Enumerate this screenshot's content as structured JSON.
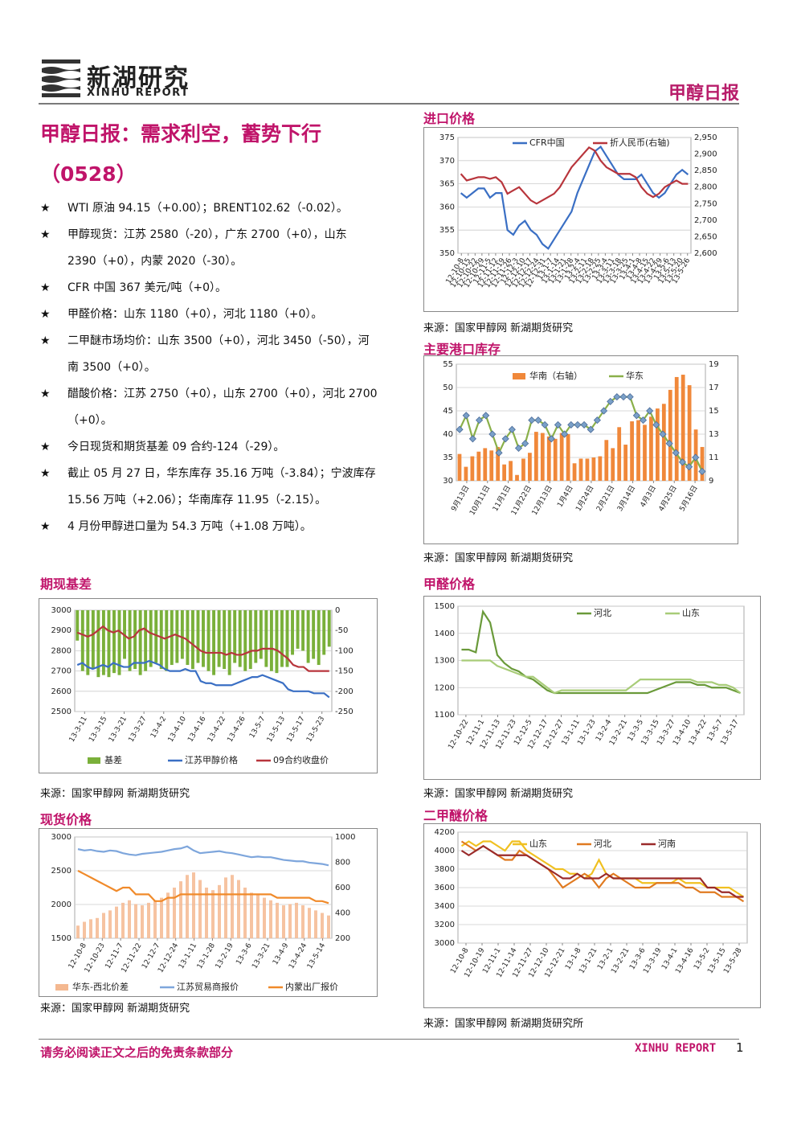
{
  "header": {
    "logo_cn": "新湖研究",
    "logo_en": "XINHU REPORT",
    "report_name": "甲醇日报"
  },
  "title": {
    "line1": "甲醇日报：需求利空，蓄势下行",
    "line2": "（0528）"
  },
  "bullets": [
    {
      "star": "★",
      "text": "WTI 原油 94.15（+0.00）；BRENT102.62（-0.02）。"
    },
    {
      "star": "★",
      "text": "甲醇现货：江苏 2580（-20），广东 2700（+0），山东 2390（+0），内蒙 2020（-30）。"
    },
    {
      "star": "★",
      "text": "CFR 中国 367 美元/吨（+0）。"
    },
    {
      "star": "★",
      "text": "甲醛价格：山东 1180（+0），河北 1180（+0）。"
    },
    {
      "star": "★",
      "text": "二甲醚市场均价：山东 3500（+0），河北 3450（-50），河南 3500（+0）。"
    },
    {
      "star": "★",
      "text": "醋酸价格：江苏 2750（+0），山东 2700（+0），河北 2700（+0）。"
    },
    {
      "star": "★",
      "text": "今日现货和期货基差 09 合约-124（-29）。"
    },
    {
      "star": "★",
      "text": "截止 05 月 27 日，华东库存 35.16 万吨（-3.84）；宁波库存 15.56 万吨（+2.06）；华南库存 11.95（-2.15）。"
    },
    {
      "star": "★",
      "text": "4 月份甲醇进口量为 54.3 万吨（+1.08 万吨）。"
    }
  ],
  "sections": {
    "import": {
      "title": "进口价格",
      "source": "来源：国家甲醇网 新湖期货研究"
    },
    "inventory": {
      "title": "主要港口库存",
      "source": "来源：国家甲醇网 新湖期货研究"
    },
    "basis": {
      "title": "期现基差",
      "source": "来源：国家甲醇网 新湖期货研究"
    },
    "formaldehyde": {
      "title": "甲醛价格",
      "source": "来源：国家甲醇网 新湖期货研究"
    },
    "spot": {
      "title": "现货价格",
      "source": "来源：国家甲醇网 新湖期货研究"
    },
    "dme": {
      "title": "二甲醚价格",
      "source": "来源：国家甲醇网 新湖期货研究所"
    }
  },
  "footer": {
    "disclaimer": "请务必阅读正文之后的免责条款部分",
    "brand": "XINHU REPORT",
    "page": "1"
  },
  "colors": {
    "accent": "#c0146a",
    "blue": "#3a6fc4",
    "red": "#b8353c",
    "orange": "#f0883a",
    "green": "#6a9a3a"
  },
  "chart_data": [
    {
      "id": "import",
      "type": "line",
      "x_ticks": [
        "12-10-8",
        "12-10-15",
        "12-10-22",
        "12-10-29",
        "12-11-5",
        "12-11-12",
        "12-11-19",
        "12-11-26",
        "12-12-3",
        "12-12-10",
        "12-12-17",
        "12-12-24",
        "12-12-31",
        "13-1-7",
        "13-1-14",
        "13-1-21",
        "13-1-28",
        "13-2-4",
        "13-2-11",
        "13-2-18",
        "13-2-25",
        "13-3-4",
        "13-3-11",
        "13-3-18",
        "13-3-25",
        "13-4-1",
        "13-4-8",
        "13-4-15",
        "13-4-22",
        "13-4-29",
        "13-5-6",
        "13-5-13",
        "13-5-20",
        "13-5-26"
      ],
      "ylim": [
        350,
        375
      ],
      "y_ticks": [
        350,
        355,
        360,
        365,
        370,
        375
      ],
      "y2lim": [
        2600,
        2950
      ],
      "y2_ticks": [
        "2,600",
        "2,650",
        "2,700",
        "2,750",
        "2,800",
        "2,850",
        "2,900",
        "2,950"
      ],
      "series": [
        {
          "name": "CFR中国",
          "axis": "left",
          "color": "#3a6fc4",
          "values": [
            363,
            362,
            363,
            364,
            364,
            362,
            363,
            363,
            355,
            354,
            356,
            357,
            355,
            354,
            352,
            351,
            353,
            355,
            357,
            359,
            363,
            366,
            369,
            372,
            373,
            371,
            369,
            367,
            366,
            366,
            366,
            367,
            365,
            363,
            362,
            363,
            365,
            367,
            368,
            367
          ]
        },
        {
          "name": "折人民币(右轴)",
          "axis": "right",
          "color": "#b8353c",
          "values": [
            2840,
            2820,
            2825,
            2830,
            2830,
            2825,
            2830,
            2815,
            2780,
            2790,
            2800,
            2780,
            2760,
            2750,
            2760,
            2770,
            2780,
            2800,
            2830,
            2860,
            2880,
            2900,
            2920,
            2910,
            2880,
            2860,
            2850,
            2840,
            2840,
            2840,
            2830,
            2800,
            2780,
            2770,
            2780,
            2800,
            2810,
            2820,
            2810,
            2810
          ]
        }
      ]
    },
    {
      "id": "inventory",
      "type": "bar",
      "x_ticks": [
        "9月13日",
        "10月11日",
        "11月1日",
        "11月22日",
        "12月13日",
        "1月4日",
        "1月24日",
        "2月21日",
        "3月14日",
        "4月3日",
        "4月25日",
        "5月16日"
      ],
      "ylim": [
        30,
        55
      ],
      "y_ticks": [
        30,
        35,
        40,
        45,
        50,
        55
      ],
      "y2lim": [
        9,
        19
      ],
      "y2_ticks": [
        9,
        11,
        13,
        15,
        17,
        19
      ],
      "series": [
        {
          "name": "华南（右轴）",
          "axis": "right",
          "type": "bar",
          "color": "#f0883a",
          "values": [
            11.3,
            10.2,
            11.1,
            11.5,
            11.8,
            11.6,
            11.9,
            10.4,
            10.7,
            9.5,
            10.9,
            11.4,
            13.2,
            13.1,
            12.8,
            12.6,
            13.1,
            13.0,
            10.5,
            10.9,
            10.9,
            11.0,
            11.1,
            12.5,
            11.8,
            13.6,
            12.1,
            14.1,
            14.2,
            13.8,
            14.5,
            15.2,
            15.6,
            16.8,
            17.9,
            18.1,
            17.2,
            13.4,
            11.9
          ]
        },
        {
          "name": "华东",
          "axis": "left",
          "type": "line",
          "color": "#8ab04a",
          "values": [
            41,
            44,
            39,
            43,
            44,
            40,
            36,
            39,
            41,
            37,
            38,
            43,
            43,
            42,
            39,
            42,
            40,
            42,
            42,
            42,
            41,
            43,
            45,
            47,
            48,
            48,
            48,
            44,
            43,
            45,
            42,
            40,
            38,
            36,
            34,
            33,
            35,
            32
          ]
        }
      ]
    },
    {
      "id": "basis",
      "type": "bar",
      "x_ticks": [
        "13-3-11",
        "13-3-15",
        "13-3-21",
        "13-3-27",
        "13-4-2",
        "13-4-10",
        "13-4-16",
        "13-4-22",
        "13-4-26",
        "13-5-7",
        "13-5-13",
        "13-5-17",
        "13-5-23"
      ],
      "ylim": [
        2500,
        3000
      ],
      "y_ticks": [
        2500,
        2600,
        2700,
        2800,
        2900,
        3000
      ],
      "y2lim": [
        -250,
        0
      ],
      "y2_ticks": [
        -250,
        -200,
        -150,
        -100,
        -50,
        0
      ],
      "series": [
        {
          "name": "基差",
          "axis": "right",
          "type": "bar",
          "color": "#7ab03a",
          "values": [
            -75,
            -150,
            -160,
            -145,
            -165,
            -160,
            -165,
            -155,
            -160,
            -120,
            -150,
            -145,
            -160,
            -150,
            -140,
            -130,
            -145,
            -150,
            -135,
            -130,
            -120,
            -135,
            -145,
            -130,
            -140,
            -150,
            -160,
            -140,
            -145,
            -160,
            -130,
            -140,
            -150,
            -145,
            -130,
            -120,
            -140,
            -150,
            -155,
            -140,
            -140,
            -110,
            -95,
            -100,
            -130,
            -120,
            -135,
            -110,
            -90
          ]
        },
        {
          "name": "江苏甲醇价格",
          "axis": "left",
          "type": "line",
          "color": "#3a6fc4",
          "values": [
            2730,
            2740,
            2720,
            2710,
            2720,
            2730,
            2720,
            2740,
            2730,
            2720,
            2720,
            2740,
            2740,
            2740,
            2750,
            2740,
            2730,
            2710,
            2700,
            2700,
            2700,
            2710,
            2700,
            2700,
            2650,
            2640,
            2640,
            2630,
            2630,
            2630,
            2630,
            2640,
            2650,
            2660,
            2670,
            2670,
            2680,
            2670,
            2660,
            2650,
            2640,
            2610,
            2600,
            2600,
            2600,
            2600,
            2590,
            2590,
            2590,
            2570
          ]
        },
        {
          "name": "09合约收盘价",
          "axis": "left",
          "type": "line",
          "color": "#b8353c",
          "values": [
            2890,
            2880,
            2870,
            2880,
            2900,
            2920,
            2900,
            2890,
            2900,
            2880,
            2860,
            2870,
            2900,
            2910,
            2890,
            2880,
            2870,
            2860,
            2870,
            2880,
            2870,
            2860,
            2840,
            2820,
            2800,
            2790,
            2790,
            2790,
            2790,
            2780,
            2790,
            2780,
            2780,
            2790,
            2800,
            2800,
            2810,
            2810,
            2810,
            2800,
            2780,
            2760,
            2730,
            2720,
            2720,
            2700,
            2700,
            2700,
            2700,
            2700
          ]
        }
      ]
    },
    {
      "id": "formaldehyde",
      "type": "line",
      "x_ticks": [
        "12-10-22",
        "12-11-1",
        "12-11-13",
        "12-11-23",
        "12-12-5",
        "12-12-17",
        "12-12-27",
        "13-1-11",
        "13-1-23",
        "13-2-4",
        "13-2-21",
        "13-3-5",
        "13-3-15",
        "13-3-27",
        "13-4-10",
        "13-4-22",
        "13-5-7",
        "13-5-17"
      ],
      "ylim": [
        1100,
        1500
      ],
      "y_ticks": [
        1100,
        1200,
        1300,
        1400,
        1500
      ],
      "series": [
        {
          "name": "河北",
          "color": "#6a9a3a",
          "values": [
            1340,
            1340,
            1330,
            1480,
            1440,
            1320,
            1290,
            1270,
            1260,
            1240,
            1230,
            1210,
            1190,
            1180,
            1180,
            1180,
            1180,
            1180,
            1180,
            1180,
            1180,
            1180,
            1180,
            1180,
            1180,
            1180,
            1180,
            1190,
            1200,
            1210,
            1220,
            1220,
            1220,
            1210,
            1210,
            1200,
            1200,
            1200,
            1190,
            1180
          ]
        },
        {
          "name": "山东",
          "color": "#a8cc78",
          "values": [
            1300,
            1300,
            1300,
            1300,
            1300,
            1280,
            1270,
            1260,
            1250,
            1240,
            1240,
            1220,
            1200,
            1180,
            1190,
            1190,
            1190,
            1190,
            1190,
            1190,
            1190,
            1190,
            1190,
            1190,
            1210,
            1230,
            1230,
            1230,
            1230,
            1230,
            1230,
            1230,
            1230,
            1220,
            1220,
            1220,
            1210,
            1210,
            1200,
            1180
          ]
        }
      ]
    },
    {
      "id": "spot",
      "type": "area",
      "x_ticks": [
        "12-10-8",
        "12-10-23",
        "12-11-7",
        "12-11-22",
        "12-12-7",
        "12-12-24",
        "13-1-11",
        "13-1-28",
        "13-2-19",
        "13-3-6",
        "13-3-21",
        "13-4-9",
        "13-4-24",
        "13-5-14"
      ],
      "ylim": [
        1500,
        3000
      ],
      "y_ticks": [
        1500,
        2000,
        2500,
        3000
      ],
      "y2lim": [
        200,
        1000
      ],
      "y2_ticks": [
        200,
        400,
        600,
        800,
        1000
      ],
      "series": [
        {
          "name": "华东-西北价差",
          "axis": "right",
          "type": "area",
          "color": "#f4b890",
          "values": [
            300,
            330,
            350,
            360,
            400,
            420,
            450,
            480,
            500,
            470,
            460,
            480,
            500,
            520,
            560,
            600,
            650,
            700,
            720,
            660,
            600,
            580,
            620,
            680,
            700,
            660,
            600,
            560,
            540,
            520,
            500,
            480,
            460,
            470,
            480,
            460,
            440,
            420,
            400,
            380
          ]
        },
        {
          "name": "江苏贸易商报价",
          "axis": "left",
          "type": "line",
          "color": "#7ea6dc",
          "values": [
            2820,
            2800,
            2810,
            2790,
            2780,
            2800,
            2790,
            2760,
            2740,
            2730,
            2750,
            2760,
            2770,
            2780,
            2800,
            2820,
            2830,
            2860,
            2800,
            2760,
            2770,
            2780,
            2790,
            2770,
            2760,
            2740,
            2720,
            2700,
            2710,
            2700,
            2700,
            2680,
            2660,
            2650,
            2640,
            2640,
            2620,
            2610,
            2600,
            2580
          ]
        },
        {
          "name": "内蒙出厂报价",
          "axis": "left",
          "type": "line",
          "color": "#f08a2a",
          "values": [
            2500,
            2450,
            2400,
            2350,
            2300,
            2250,
            2200,
            2250,
            2250,
            2150,
            2150,
            2150,
            2050,
            2050,
            2100,
            2100,
            2150,
            2150,
            2150,
            2150,
            2150,
            2150,
            2150,
            2150,
            2150,
            2150,
            2150,
            2150,
            2150,
            2150,
            2150,
            2100,
            2100,
            2100,
            2100,
            2100,
            2100,
            2050,
            2050,
            2020
          ]
        }
      ]
    },
    {
      "id": "dme",
      "type": "line",
      "x_ticks": [
        "12-10-8",
        "12-10-19",
        "12-11-1",
        "12-11-14",
        "12-11-27",
        "12-12-10",
        "12-12-21",
        "13-1-8",
        "13-1-21",
        "13-2-1",
        "13-2-21",
        "13-3-6",
        "13-3-19",
        "13-4-1",
        "13-4-16",
        "13-5-2",
        "13-5-15",
        "13-5-28"
      ],
      "ylim": [
        3000,
        4200
      ],
      "y_ticks": [
        3000,
        3200,
        3400,
        3600,
        3800,
        4000,
        4200
      ],
      "series": [
        {
          "name": "山东",
          "color": "#f0c020",
          "values": [
            4050,
            4100,
            4050,
            4100,
            4100,
            4050,
            4000,
            4100,
            4100,
            4000,
            3950,
            3900,
            3850,
            3800,
            3800,
            3750,
            3750,
            3700,
            3750,
            3900,
            3750,
            3700,
            3700,
            3700,
            3700,
            3650,
            3650,
            3650,
            3650,
            3650,
            3700,
            3650,
            3650,
            3650,
            3600,
            3600,
            3600,
            3600,
            3550,
            3500
          ]
        },
        {
          "name": "河北",
          "color": "#e07a20",
          "values": [
            4100,
            4050,
            4000,
            4050,
            4000,
            3950,
            3900,
            3900,
            4000,
            3950,
            3900,
            3850,
            3800,
            3700,
            3600,
            3650,
            3700,
            3750,
            3700,
            3600,
            3700,
            3750,
            3700,
            3650,
            3600,
            3600,
            3600,
            3650,
            3650,
            3650,
            3650,
            3600,
            3600,
            3550,
            3550,
            3550,
            3500,
            3500,
            3500,
            3450
          ]
        },
        {
          "name": "河南",
          "color": "#9a2a2a",
          "values": [
            4000,
            3950,
            4000,
            4050,
            4000,
            3950,
            3950,
            3950,
            3950,
            3950,
            3900,
            3850,
            3800,
            3750,
            3700,
            3700,
            3750,
            3700,
            3700,
            3700,
            3750,
            3700,
            3700,
            3700,
            3700,
            3700,
            3700,
            3700,
            3700,
            3700,
            3700,
            3700,
            3700,
            3700,
            3600,
            3600,
            3550,
            3550,
            3500,
            3500
          ]
        }
      ]
    }
  ]
}
